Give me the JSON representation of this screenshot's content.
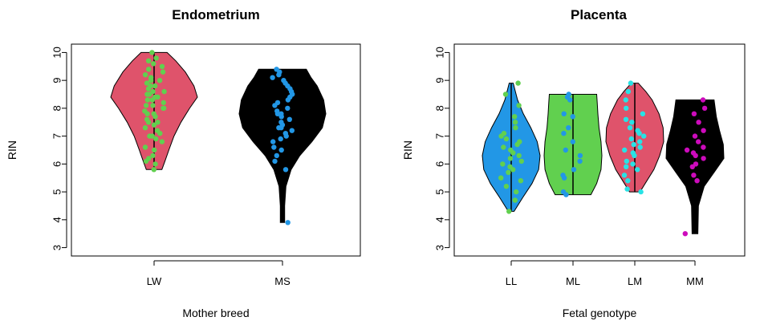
{
  "chart_data": [
    {
      "type": "violin",
      "title": "Endometrium",
      "xlabel": "Mother breed",
      "ylabel": "RIN",
      "ylim": [
        2.7,
        10.3
      ],
      "yticks": [
        "3",
        "4",
        "5",
        "6",
        "7",
        "8",
        "9",
        "10"
      ],
      "categories": [
        "LW",
        "MS"
      ],
      "groups": [
        {
          "name": "LW",
          "fill": "#df536b",
          "point_color": "#61d04f",
          "min": 5.8,
          "max": 10.0,
          "profile": [
            [
              5.8,
              0.18
            ],
            [
              6.1,
              0.25
            ],
            [
              6.5,
              0.34
            ],
            [
              7.0,
              0.46
            ],
            [
              7.5,
              0.62
            ],
            [
              8.0,
              0.82
            ],
            [
              8.4,
              1.0
            ],
            [
              8.8,
              0.92
            ],
            [
              9.3,
              0.72
            ],
            [
              9.7,
              0.5
            ],
            [
              10.0,
              0.3
            ]
          ],
          "points": [
            5.8,
            6.0,
            6.1,
            6.2,
            6.3,
            6.5,
            6.6,
            6.8,
            6.9,
            7.0,
            7.0,
            7.1,
            7.2,
            7.3,
            7.4,
            7.5,
            7.5,
            7.6,
            7.7,
            7.8,
            7.8,
            7.9,
            8.0,
            8.0,
            8.1,
            8.1,
            8.2,
            8.3,
            8.3,
            8.4,
            8.4,
            8.5,
            8.5,
            8.6,
            8.6,
            8.7,
            8.8,
            8.8,
            8.9,
            9.0,
            9.0,
            9.1,
            9.2,
            9.3,
            9.4,
            9.5,
            9.6,
            9.7,
            9.8,
            10.0
          ]
        },
        {
          "name": "MS",
          "fill": "#000000",
          "point_color": "#2297e6",
          "min": 3.9,
          "max": 9.4,
          "profile": [
            [
              3.9,
              0.05
            ],
            [
              4.5,
              0.05
            ],
            [
              5.2,
              0.08
            ],
            [
              5.8,
              0.2
            ],
            [
              6.3,
              0.4
            ],
            [
              6.8,
              0.68
            ],
            [
              7.3,
              0.92
            ],
            [
              7.8,
              1.0
            ],
            [
              8.3,
              0.95
            ],
            [
              8.8,
              0.8
            ],
            [
              9.1,
              0.66
            ],
            [
              9.4,
              0.55
            ]
          ],
          "points": [
            3.9,
            5.8,
            6.1,
            6.3,
            6.5,
            6.6,
            6.8,
            6.9,
            7.0,
            7.1,
            7.2,
            7.3,
            7.3,
            7.4,
            7.5,
            7.6,
            7.7,
            7.8,
            7.8,
            7.9,
            8.0,
            8.1,
            8.2,
            8.3,
            8.4,
            8.5,
            8.6,
            8.7,
            8.8,
            8.9,
            9.0,
            9.1,
            9.2,
            9.3,
            9.4
          ]
        }
      ]
    },
    {
      "type": "violin",
      "title": "Placenta",
      "xlabel": "Fetal genotype",
      "ylabel": "RIN",
      "ylim": [
        2.7,
        10.3
      ],
      "yticks": [
        "3",
        "4",
        "5",
        "6",
        "7",
        "8",
        "9",
        "10"
      ],
      "categories": [
        "LL",
        "ML",
        "LM",
        "MM"
      ],
      "groups": [
        {
          "name": "LL",
          "fill": "#2297e6",
          "point_color": "#61d04f",
          "min": 4.3,
          "max": 8.9,
          "profile": [
            [
              4.3,
              0.1
            ],
            [
              4.8,
              0.4
            ],
            [
              5.3,
              0.72
            ],
            [
              5.8,
              0.95
            ],
            [
              6.3,
              1.0
            ],
            [
              6.8,
              0.9
            ],
            [
              7.3,
              0.68
            ],
            [
              7.8,
              0.42
            ],
            [
              8.3,
              0.22
            ],
            [
              8.9,
              0.06
            ]
          ],
          "points": [
            4.3,
            4.7,
            5.0,
            5.2,
            5.4,
            5.5,
            5.7,
            5.8,
            5.9,
            6.0,
            6.1,
            6.2,
            6.3,
            6.4,
            6.5,
            6.6,
            6.7,
            6.8,
            6.9,
            7.0,
            7.1,
            7.3,
            7.5,
            7.7,
            8.1,
            8.5,
            8.9
          ]
        },
        {
          "name": "ML",
          "fill": "#61d04f",
          "point_color": "#2297e6",
          "min": 4.9,
          "max": 8.5,
          "profile": [
            [
              4.9,
              0.62
            ],
            [
              5.3,
              0.82
            ],
            [
              5.8,
              0.97
            ],
            [
              6.3,
              1.0
            ],
            [
              6.8,
              0.97
            ],
            [
              7.3,
              0.9
            ],
            [
              7.8,
              0.86
            ],
            [
              8.2,
              0.84
            ],
            [
              8.5,
              0.82
            ]
          ],
          "points": [
            4.9,
            5.0,
            5.5,
            5.6,
            5.8,
            6.1,
            6.3,
            6.5,
            6.8,
            7.1,
            7.3,
            7.7,
            7.8,
            8.3,
            8.4,
            8.5
          ]
        },
        {
          "name": "LM",
          "fill": "#df536b",
          "point_color": "#28e2e5",
          "min": 5.0,
          "max": 8.9,
          "profile": [
            [
              5.0,
              0.18
            ],
            [
              5.4,
              0.42
            ],
            [
              5.8,
              0.66
            ],
            [
              6.3,
              0.86
            ],
            [
              6.8,
              1.0
            ],
            [
              7.3,
              0.98
            ],
            [
              7.8,
              0.84
            ],
            [
              8.3,
              0.6
            ],
            [
              8.6,
              0.38
            ],
            [
              8.9,
              0.12
            ]
          ],
          "points": [
            5.0,
            5.1,
            5.4,
            5.6,
            5.8,
            5.9,
            6.0,
            6.1,
            6.3,
            6.4,
            6.5,
            6.6,
            6.7,
            6.8,
            6.9,
            7.0,
            7.1,
            7.2,
            7.3,
            7.5,
            7.6,
            7.8,
            8.0,
            8.3,
            8.6,
            8.9
          ]
        },
        {
          "name": "MM",
          "fill": "#000000",
          "point_color": "#cd0bbc",
          "min": 3.5,
          "max": 8.3,
          "profile": [
            [
              3.5,
              0.1
            ],
            [
              4.5,
              0.12
            ],
            [
              5.2,
              0.32
            ],
            [
              5.7,
              0.66
            ],
            [
              6.2,
              1.0
            ],
            [
              6.7,
              0.98
            ],
            [
              7.2,
              0.85
            ],
            [
              7.7,
              0.74
            ],
            [
              8.0,
              0.7
            ],
            [
              8.3,
              0.66
            ]
          ],
          "points": [
            3.5,
            5.4,
            5.6,
            5.9,
            6.0,
            6.2,
            6.3,
            6.4,
            6.5,
            6.6,
            6.8,
            7.0,
            7.2,
            7.5,
            7.8,
            8.0,
            8.3
          ]
        }
      ]
    }
  ]
}
